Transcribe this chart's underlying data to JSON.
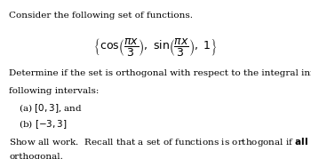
{
  "background_color": "#ffffff",
  "fig_width": 3.5,
  "fig_height": 1.79,
  "dpi": 100,
  "line1": "Consider the following set of functions.",
  "set_latex": "$\\left\\{\\cos\\!\\left(\\dfrac{\\pi x}{3}\\right),\\ \\sin\\!\\left(\\dfrac{\\pi x}{3}\\right),\\ 1\\right\\}$",
  "line3": "Determine if the set is orthogonal with respect to the integral inner product on the",
  "line4": "following intervals:",
  "item_a": "(a) $[0, 3]$, and",
  "item_b": "(b) $[-3, 3]$",
  "line_last1": "Show all work.  Recall that a set of functions is orthogonal if $\\mathbf{all}$ pairs of functions are",
  "line_last2": "orthogonal.",
  "font_size": 7.5,
  "math_font_size": 9.0,
  "text_color": "#000000"
}
